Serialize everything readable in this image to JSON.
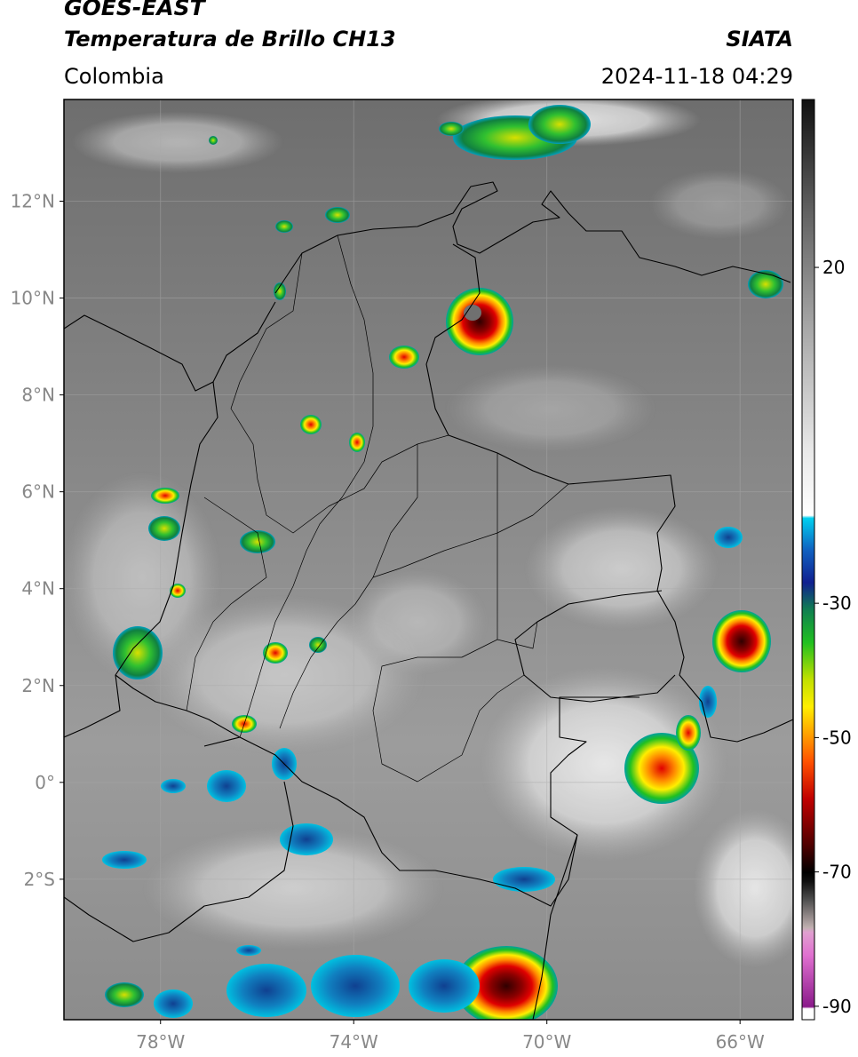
{
  "header": {
    "satellite": "GOES-EAST",
    "product": "Temperatura de Brillo CH13",
    "region": "Colombia",
    "source": "SIATA",
    "datetime": "2024-11-18 04:29"
  },
  "map": {
    "lon_range": [
      -80,
      -64.9
    ],
    "lat_range": [
      -4.9,
      14.1
    ],
    "lat_ticks": [
      "12°N",
      "10°N",
      "8°N",
      "6°N",
      "4°N",
      "2°N",
      "0°",
      "2°S"
    ],
    "lon_ticks": [
      "78°W",
      "74°W",
      "70°W",
      "66°W"
    ],
    "grid": true
  },
  "colorbar": {
    "range": [
      -92,
      45
    ],
    "ticks": [
      "20",
      "-30",
      "-50",
      "-70",
      "-90"
    ],
    "colors": {
      "magenta": "#e070d0",
      "black": "#000000",
      "dark_red": "#600000",
      "red": "#e00000",
      "orange": "#ff8a00",
      "yellow": "#ffee00",
      "green": "#20c020",
      "teal": "#00a0a0",
      "navy": "#102090",
      "cyan": "#00d0f0"
    }
  }
}
